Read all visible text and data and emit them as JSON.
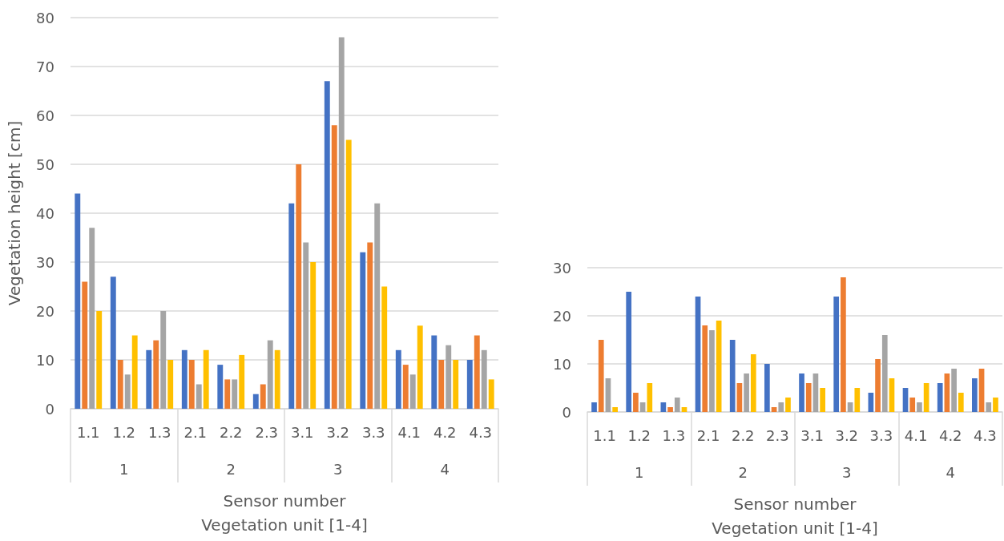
{
  "chart_data": [
    {
      "type": "bar",
      "ylabel": "Vegetation height [cm]",
      "xlabel": "Sensor number\nVegetation unit [1-4]",
      "categories": [
        "1.1",
        "1.2",
        "1.3",
        "2.1",
        "2.2",
        "2.3",
        "3.1",
        "3.2",
        "3.3",
        "4.1",
        "4.2",
        "4.3"
      ],
      "annotations": [
        "1",
        "2",
        "3",
        "4"
      ],
      "series": [
        {
          "color": "#4472c4",
          "values": [
            44,
            27,
            12,
            12,
            9,
            3,
            42,
            67,
            32,
            12,
            15,
            10
          ]
        },
        {
          "color": "#ed7d31",
          "values": [
            26,
            10,
            14,
            10,
            6,
            5,
            50,
            58,
            34,
            9,
            10,
            15
          ]
        },
        {
          "color": "#a5a5a5",
          "values": [
            37,
            7,
            20,
            5,
            6,
            14,
            34,
            76,
            42,
            7,
            13,
            12
          ]
        },
        {
          "color": "#ffc000",
          "values": [
            20,
            15,
            10,
            12,
            11,
            12,
            30,
            55,
            25,
            17,
            10,
            6
          ]
        }
      ],
      "ylim": [
        0,
        80
      ],
      "yticks": [
        0,
        10,
        20,
        30,
        40,
        50,
        60,
        70,
        80
      ],
      "grid": "y"
    },
    {
      "type": "bar",
      "xlabel": "Sensor number\nVegetation unit [1-4]",
      "categories": [
        "1.1",
        "1.2",
        "1.3",
        "2.1",
        "2.2",
        "2.3",
        "3.1",
        "3.2",
        "3.3",
        "4.1",
        "4.2",
        "4.3"
      ],
      "annotations": [
        "1",
        "2",
        "3",
        "4"
      ],
      "series": [
        {
          "color": "#4472c4",
          "values": [
            2,
            25,
            2,
            24,
            15,
            10,
            8,
            24,
            4,
            5,
            6,
            7
          ]
        },
        {
          "color": "#ed7d31",
          "values": [
            15,
            4,
            1,
            18,
            6,
            1,
            6,
            28,
            11,
            3,
            8,
            9
          ]
        },
        {
          "color": "#a5a5a5",
          "values": [
            7,
            2,
            3,
            17,
            8,
            2,
            8,
            2,
            16,
            2,
            9,
            2
          ]
        },
        {
          "color": "#ffc000",
          "values": [
            1,
            6,
            1,
            19,
            12,
            3,
            5,
            5,
            7,
            6,
            4,
            3
          ]
        }
      ],
      "ylim": [
        0,
        30
      ],
      "yticks": [
        0,
        10,
        20,
        30
      ],
      "grid": "y"
    }
  ]
}
